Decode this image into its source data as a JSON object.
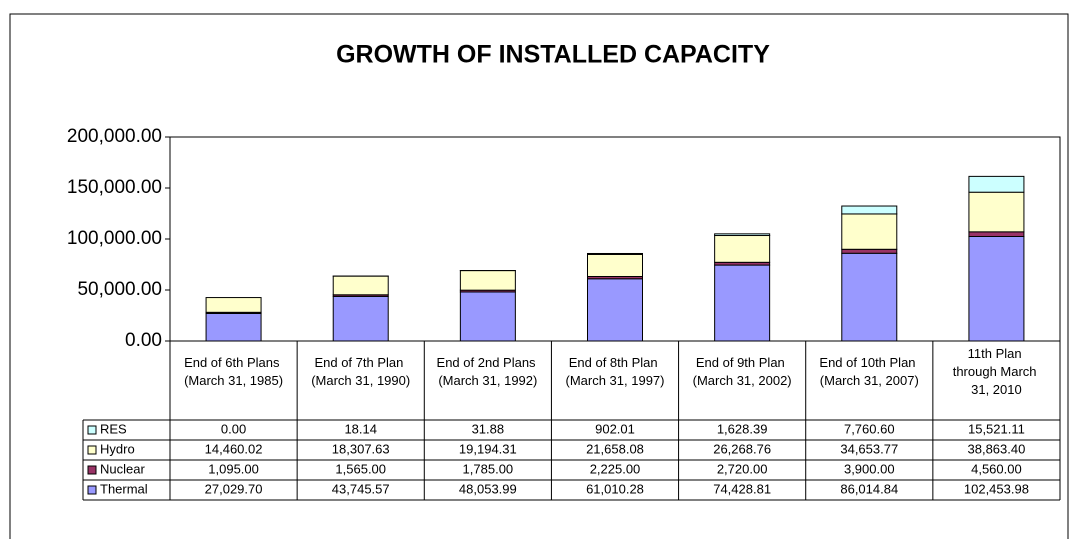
{
  "chart_data": {
    "type": "stacked_bar",
    "title": "GROWTH OF INSTALLED CAPACITY",
    "categories": [
      "End of 6th Plans (March 31, 1985)",
      "End of 7th Plan (March 31, 1990)",
      "End of 2nd Plans (March 31, 1992)",
      "End of 8th Plan (March 31, 1997)",
      "End of 9th Plan (March 31, 2002)",
      "End of 10th Plan (March 31, 2007)",
      "11th Plan through March 31, 2010"
    ],
    "series": [
      {
        "name": "RES",
        "color": "#ccffff",
        "values": [
          0,
          18.14,
          31.88,
          902.01,
          1628.39,
          7760.6,
          15521.11
        ],
        "value_labels": [
          "0.00",
          "18.14",
          "31.88",
          "902.01",
          "1,628.39",
          "7,760.60",
          "15,521.11"
        ]
      },
      {
        "name": "Hydro",
        "color": "#ffffcc",
        "values": [
          14460.02,
          18307.63,
          19194.31,
          21658.08,
          26268.76,
          34653.77,
          38863.4
        ],
        "value_labels": [
          "14,460.02",
          "18,307.63",
          "19,194.31",
          "21,658.08",
          "26,268.76",
          "34,653.77",
          "38,863.40"
        ]
      },
      {
        "name": "Nuclear",
        "color": "#993366",
        "values": [
          1095,
          1565,
          1785,
          2225,
          2720,
          3900,
          4560
        ],
        "value_labels": [
          "1,095.00",
          "1,565.00",
          "1,785.00",
          "2,225.00",
          "2,720.00",
          "3,900.00",
          "4,560.00"
        ]
      },
      {
        "name": "Thermal",
        "color": "#9999ff",
        "values": [
          27029.7,
          43745.57,
          48053.99,
          61010.28,
          74428.81,
          86014.84,
          102453.98
        ],
        "value_labels": [
          "27,029.70",
          "43,745.57",
          "48,053.99",
          "61,010.28",
          "74,428.81",
          "86,014.84",
          "102,453.98"
        ]
      }
    ],
    "ylim": [
      0,
      200000
    ],
    "yticks": [
      {
        "value": 0,
        "label": "0.00"
      },
      {
        "value": 50000,
        "label": "50,000.00"
      },
      {
        "value": 100000,
        "label": "100,000.00"
      },
      {
        "value": 150000,
        "label": "150,000.00"
      },
      {
        "value": 200000,
        "label": "200,000.00"
      }
    ]
  }
}
